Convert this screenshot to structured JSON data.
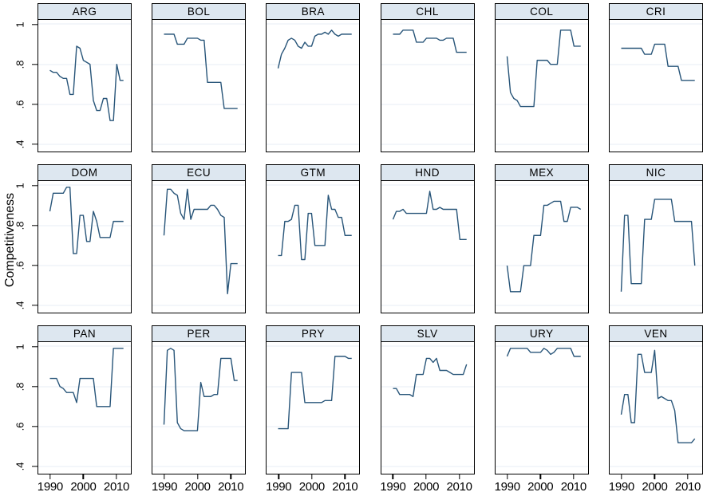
{
  "figure": {
    "ylabel": "Competitiveness",
    "y_tick_labels": [
      "1",
      ".8",
      ".6",
      ".4"
    ],
    "y_tick_values": [
      1,
      0.8,
      0.6,
      0.4
    ],
    "x_tick_labels": [
      "1990",
      "2000",
      "2010"
    ],
    "x_tick_years": [
      1990,
      2000,
      2010
    ],
    "colors": {
      "line": "#285579",
      "header_bg": "#dde7f0",
      "grid_line": "#e7eef5",
      "border": "#000000",
      "background": "#ffffff"
    }
  },
  "chart_data": {
    "type": "line",
    "layout": "small-multiples grid, 3 rows x 6 columns, shared axes",
    "x": "year",
    "x_range": [
      1990,
      2012
    ],
    "ylim": [
      0.4,
      1.0
    ],
    "ylabel": "Competitiveness",
    "grid": true,
    "legend": "none",
    "panels": [
      {
        "code": "ARG",
        "values": [
          0.77,
          0.76,
          0.76,
          0.74,
          0.73,
          0.73,
          0.65,
          0.65,
          0.89,
          0.88,
          0.82,
          0.81,
          0.8,
          0.62,
          0.57,
          0.57,
          0.63,
          0.63,
          0.52,
          0.52,
          0.8,
          0.72,
          0.72
        ]
      },
      {
        "code": "BOL",
        "values": [
          0.95,
          0.95,
          0.95,
          0.95,
          0.9,
          0.9,
          0.9,
          0.93,
          0.93,
          0.93,
          0.93,
          0.92,
          0.92,
          0.71,
          0.71,
          0.71,
          0.71,
          0.71,
          0.58,
          0.58,
          0.58,
          0.58,
          0.58
        ]
      },
      {
        "code": "BRA",
        "values": [
          0.78,
          0.85,
          0.88,
          0.92,
          0.93,
          0.92,
          0.89,
          0.88,
          0.91,
          0.89,
          0.89,
          0.94,
          0.95,
          0.95,
          0.96,
          0.95,
          0.97,
          0.95,
          0.94,
          0.95,
          0.95,
          0.95,
          0.95
        ]
      },
      {
        "code": "CHL",
        "values": [
          0.95,
          0.95,
          0.95,
          0.97,
          0.97,
          0.97,
          0.97,
          0.91,
          0.91,
          0.91,
          0.93,
          0.93,
          0.93,
          0.93,
          0.92,
          0.92,
          0.93,
          0.93,
          0.93,
          0.86,
          0.86,
          0.86,
          0.86
        ]
      },
      {
        "code": "COL",
        "values": [
          0.84,
          0.66,
          0.63,
          0.62,
          0.59,
          0.59,
          0.59,
          0.59,
          0.59,
          0.82,
          0.82,
          0.82,
          0.82,
          0.8,
          0.8,
          0.8,
          0.97,
          0.97,
          0.97,
          0.97,
          0.89,
          0.89,
          0.89
        ]
      },
      {
        "code": "CRI",
        "values": [
          0.88,
          0.88,
          0.88,
          0.88,
          0.88,
          0.88,
          0.88,
          0.85,
          0.85,
          0.85,
          0.9,
          0.9,
          0.9,
          0.9,
          0.79,
          0.79,
          0.79,
          0.79,
          0.72,
          0.72,
          0.72,
          0.72,
          0.72
        ]
      },
      {
        "code": "DOM",
        "values": [
          0.87,
          0.96,
          0.96,
          0.96,
          0.96,
          0.99,
          0.99,
          0.66,
          0.66,
          0.85,
          0.85,
          0.72,
          0.72,
          0.87,
          0.82,
          0.74,
          0.74,
          0.74,
          0.74,
          0.82,
          0.82,
          0.82,
          0.82
        ]
      },
      {
        "code": "ECU",
        "values": [
          0.75,
          0.98,
          0.98,
          0.96,
          0.95,
          0.86,
          0.83,
          0.98,
          0.83,
          0.88,
          0.88,
          0.88,
          0.88,
          0.88,
          0.9,
          0.9,
          0.88,
          0.85,
          0.84,
          0.46,
          0.61,
          0.61,
          0.61
        ]
      },
      {
        "code": "GTM",
        "values": [
          0.65,
          0.65,
          0.82,
          0.82,
          0.83,
          0.9,
          0.9,
          0.63,
          0.63,
          0.86,
          0.86,
          0.7,
          0.7,
          0.7,
          0.7,
          0.95,
          0.88,
          0.88,
          0.84,
          0.84,
          0.75,
          0.75,
          0.75
        ]
      },
      {
        "code": "HND",
        "values": [
          0.83,
          0.87,
          0.87,
          0.88,
          0.86,
          0.86,
          0.86,
          0.86,
          0.86,
          0.86,
          0.86,
          0.97,
          0.88,
          0.88,
          0.89,
          0.88,
          0.88,
          0.88,
          0.88,
          0.88,
          0.73,
          0.73,
          0.73
        ]
      },
      {
        "code": "MEX",
        "values": [
          0.6,
          0.47,
          0.47,
          0.47,
          0.47,
          0.6,
          0.6,
          0.6,
          0.75,
          0.75,
          0.75,
          0.9,
          0.9,
          0.91,
          0.92,
          0.92,
          0.92,
          0.82,
          0.82,
          0.89,
          0.89,
          0.89,
          0.88
        ]
      },
      {
        "code": "NIC",
        "values": [
          0.47,
          0.85,
          0.85,
          0.51,
          0.51,
          0.51,
          0.51,
          0.83,
          0.83,
          0.83,
          0.93,
          0.93,
          0.93,
          0.93,
          0.93,
          0.93,
          0.82,
          0.82,
          0.82,
          0.82,
          0.82,
          0.82,
          0.6
        ]
      },
      {
        "code": "PAN",
        "values": [
          0.84,
          0.84,
          0.84,
          0.8,
          0.79,
          0.77,
          0.77,
          0.77,
          0.72,
          0.84,
          0.84,
          0.84,
          0.84,
          0.84,
          0.7,
          0.7,
          0.7,
          0.7,
          0.7,
          0.99,
          0.99,
          0.99,
          0.99
        ]
      },
      {
        "code": "PER",
        "values": [
          0.61,
          0.98,
          0.99,
          0.98,
          0.62,
          0.59,
          0.58,
          0.58,
          0.58,
          0.58,
          0.58,
          0.82,
          0.75,
          0.75,
          0.75,
          0.76,
          0.76,
          0.94,
          0.94,
          0.94,
          0.94,
          0.83,
          0.83
        ]
      },
      {
        "code": "PRY",
        "values": [
          0.59,
          0.59,
          0.59,
          0.59,
          0.87,
          0.87,
          0.87,
          0.87,
          0.72,
          0.72,
          0.72,
          0.72,
          0.72,
          0.72,
          0.73,
          0.73,
          0.73,
          0.95,
          0.95,
          0.95,
          0.95,
          0.94,
          0.94
        ]
      },
      {
        "code": "SLV",
        "values": [
          0.79,
          0.79,
          0.76,
          0.76,
          0.76,
          0.76,
          0.75,
          0.86,
          0.86,
          0.86,
          0.94,
          0.94,
          0.92,
          0.94,
          0.88,
          0.88,
          0.88,
          0.87,
          0.86,
          0.86,
          0.86,
          0.86,
          0.91
        ]
      },
      {
        "code": "URY",
        "values": [
          0.95,
          0.99,
          0.99,
          0.99,
          0.99,
          0.99,
          0.99,
          0.97,
          0.97,
          0.97,
          0.97,
          0.99,
          0.98,
          0.96,
          0.97,
          0.99,
          0.99,
          0.99,
          0.99,
          0.99,
          0.95,
          0.95,
          0.95
        ]
      },
      {
        "code": "VEN",
        "values": [
          0.66,
          0.76,
          0.76,
          0.62,
          0.62,
          0.96,
          0.96,
          0.87,
          0.87,
          0.87,
          0.98,
          0.74,
          0.75,
          0.74,
          0.73,
          0.73,
          0.68,
          0.52,
          0.52,
          0.52,
          0.52,
          0.52,
          0.54
        ]
      }
    ]
  }
}
